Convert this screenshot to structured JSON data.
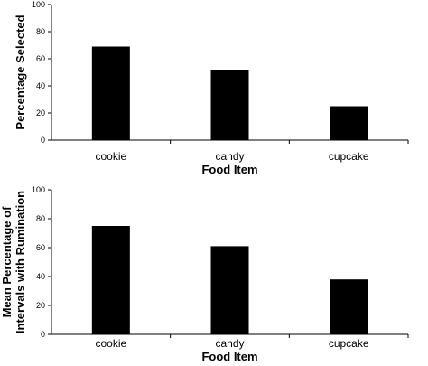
{
  "chart_data": [
    {
      "type": "bar",
      "categories": [
        "cookie",
        "candy",
        "cupcake"
      ],
      "values": [
        69,
        52,
        25
      ],
      "xlabel": "Food Item",
      "ylabel": "Percentage Selected",
      "ylim": [
        0,
        100
      ],
      "yticks": [
        "0",
        "20",
        "40",
        "60",
        "80",
        "100"
      ],
      "grid": false,
      "bar_color": "#000000"
    },
    {
      "type": "bar",
      "categories": [
        "cookie",
        "candy",
        "cupcake"
      ],
      "values": [
        75,
        61,
        38
      ],
      "xlabel": "Food Item",
      "ylabel": [
        "Mean Percentage of",
        "Intervals with Rumination"
      ],
      "ylim": [
        0,
        100
      ],
      "yticks": [
        "0",
        "20",
        "40",
        "60",
        "80",
        "100"
      ],
      "grid": false,
      "bar_color": "#000000"
    }
  ]
}
